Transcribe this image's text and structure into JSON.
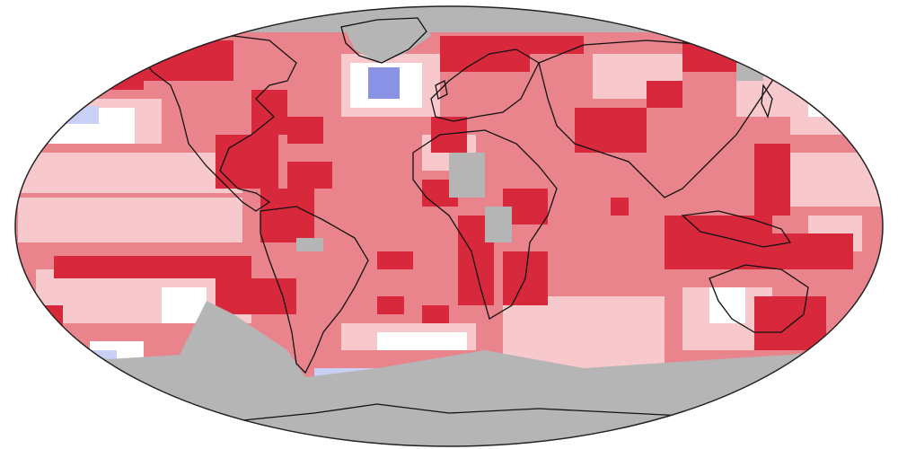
{
  "map": {
    "projection": "robinson",
    "legend": [],
    "colors": {
      "background": "#ffffff",
      "no_data": "#b5b5b5",
      "record_warm": "#d8283b",
      "much_warmer": "#e9848c",
      "warmer": "#f8c9cc",
      "near_average": "#ffffff",
      "cooler": "#c8d0f6",
      "much_cooler": "#8a93e6",
      "record_cold": "#2a38d9",
      "coastline": "#111111"
    },
    "categories": [
      "record_warm",
      "much_warmer",
      "warmer",
      "near_average",
      "cooler",
      "much_cooler",
      "record_cold",
      "no_data"
    ]
  }
}
